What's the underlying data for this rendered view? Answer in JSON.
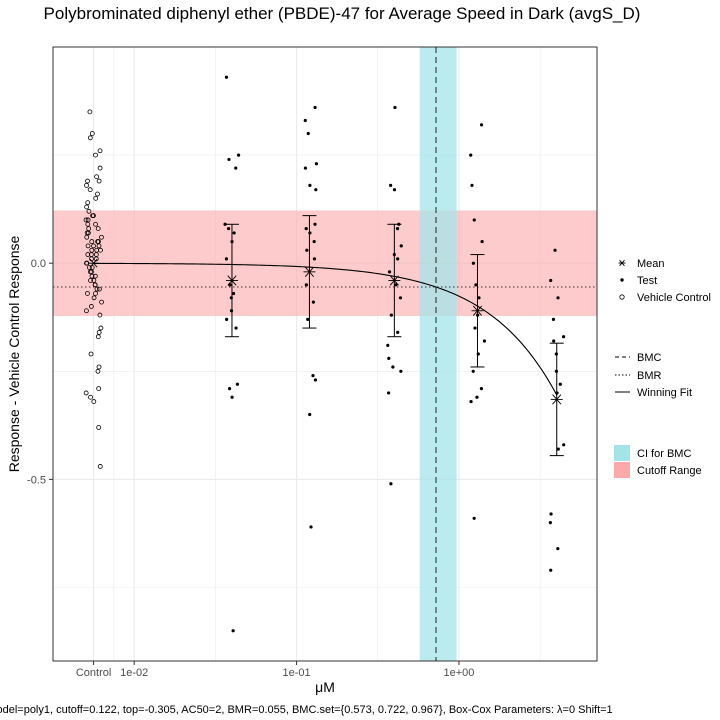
{
  "chart_data": {
    "type": "scatter",
    "title": "Polybrominated diphenyl ether (PBDE)-47 for Average Speed in Dark (avgS_D)",
    "xlabel": "μM",
    "ylabel": "Response - Vehicle Control Response",
    "x_ticks": [
      "Control",
      "1e-02",
      "1e-01",
      "1e+00"
    ],
    "y_ticks": [
      {
        "value": 0.0,
        "label": "0.0"
      },
      {
        "value": -0.5,
        "label": "-0.5"
      }
    ],
    "xlim_log10": [
      -2.5,
      0.85
    ],
    "ylim": [
      -0.92,
      0.5
    ],
    "grid": true,
    "caption": "Model=poly1, cutoff=0.122, top=-0.305, AC50=2, BMR=0.055, BMC.set={0.573, 0.722, 0.967}, Box-Cox Parameters: λ=0 Shift=1",
    "cutoff_range": [
      -0.122,
      0.122
    ],
    "bmr": -0.055,
    "bmc": 0.722,
    "bmc_ci": [
      0.573,
      0.967
    ],
    "fit": {
      "model": "poly1",
      "top": -0.305,
      "max_conc": 4.0
    },
    "vehicle_control": {
      "x": "Control",
      "values": [
        0.35,
        0.3,
        0.29,
        0.26,
        0.25,
        0.22,
        0.2,
        0.19,
        0.19,
        0.18,
        0.17,
        0.16,
        0.15,
        0.14,
        0.13,
        0.12,
        0.11,
        0.11,
        0.1,
        0.1,
        0.09,
        0.09,
        0.08,
        0.08,
        0.07,
        0.07,
        0.06,
        0.06,
        0.05,
        0.05,
        0.05,
        0.04,
        0.04,
        0.04,
        0.03,
        0.03,
        0.03,
        0.02,
        0.02,
        0.02,
        0.01,
        0.01,
        0.0,
        0.0,
        -0.01,
        -0.01,
        -0.02,
        -0.02,
        -0.03,
        -0.03,
        -0.04,
        -0.04,
        -0.05,
        -0.05,
        -0.06,
        -0.06,
        -0.07,
        -0.07,
        -0.08,
        -0.09,
        -0.1,
        -0.11,
        -0.12,
        -0.15,
        -0.16,
        -0.17,
        -0.21,
        -0.24,
        -0.25,
        -0.29,
        -0.3,
        -0.31,
        -0.32,
        -0.38,
        -0.47
      ]
    },
    "test_points": [
      {
        "conc": 0.04,
        "values": [
          0.43,
          0.25,
          0.24,
          0.22,
          0.09,
          0.08,
          0.07,
          0.05,
          0.01,
          -0.05,
          -0.07,
          -0.08,
          -0.11,
          -0.13,
          -0.15,
          -0.28,
          -0.29,
          -0.31,
          -0.85
        ]
      },
      {
        "conc": 0.12,
        "values": [
          0.36,
          0.33,
          0.3,
          0.23,
          0.22,
          0.18,
          0.17,
          0.09,
          0.08,
          0.07,
          0.05,
          0.03,
          0.01,
          -0.05,
          -0.09,
          -0.13,
          -0.26,
          -0.27,
          -0.35,
          -0.61
        ]
      },
      {
        "conc": 0.4,
        "values": [
          0.36,
          0.18,
          0.17,
          0.09,
          0.08,
          0.04,
          0.02,
          0.01,
          -0.02,
          -0.05,
          -0.08,
          -0.12,
          -0.16,
          -0.19,
          -0.22,
          -0.24,
          -0.25,
          -0.3,
          -0.51
        ]
      },
      {
        "conc": 1.3,
        "values": [
          0.32,
          0.25,
          0.18,
          0.1,
          0.05,
          0.0,
          -0.05,
          -0.08,
          -0.12,
          -0.15,
          -0.18,
          -0.21,
          -0.25,
          -0.29,
          -0.31,
          -0.32,
          -0.59
        ]
      },
      {
        "conc": 4.0,
        "values": [
          0.03,
          -0.04,
          -0.08,
          -0.13,
          -0.17,
          -0.18,
          -0.21,
          -0.25,
          -0.28,
          -0.3,
          -0.42,
          -0.43,
          -0.58,
          -0.6,
          -0.66,
          -0.71
        ]
      }
    ],
    "mean_sd": [
      {
        "x": "Control",
        "mean": 0.0,
        "sd": null
      },
      {
        "conc": 0.04,
        "mean": -0.04,
        "sd": 0.13
      },
      {
        "conc": 0.12,
        "mean": -0.02,
        "sd": 0.13
      },
      {
        "conc": 0.4,
        "mean": -0.04,
        "sd": 0.13
      },
      {
        "conc": 1.3,
        "mean": -0.11,
        "sd": 0.13
      },
      {
        "conc": 4.0,
        "mean": -0.315,
        "sd": 0.13
      }
    ],
    "legend": {
      "placement": "right",
      "shapes": [
        {
          "label": "Mean",
          "symbol": "asterisk"
        },
        {
          "label": "Test",
          "symbol": "filled-dot"
        },
        {
          "label": "Vehicle Control",
          "symbol": "open-circle"
        }
      ],
      "lines": [
        {
          "label": "BMC",
          "style": "dashed"
        },
        {
          "label": "BMR",
          "style": "dotted"
        },
        {
          "label": "Winning Fit",
          "style": "solid"
        }
      ],
      "fills": [
        {
          "label": "CI for BMC",
          "color": "#a3e4e8"
        },
        {
          "label": "Cutoff Range",
          "color": "#fca9a9"
        }
      ]
    },
    "colors": {
      "ci_band": "#a3e4e8",
      "cutoff_band": "#fca9a9",
      "grid": "#ebebeb",
      "panel_border": "#333333"
    }
  }
}
